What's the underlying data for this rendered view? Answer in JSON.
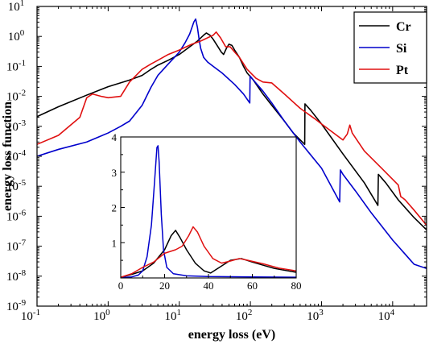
{
  "chart_data": [
    {
      "type": "line",
      "xlabel": "energy loss (eV)",
      "ylabel": "energy loss function",
      "xscale": "log",
      "yscale": "log",
      "xlim": [
        0.1,
        30000
      ],
      "ylim": [
        1e-09,
        10
      ],
      "xticks": [
        {
          "value": 0.1,
          "base": "10",
          "exp": "-1"
        },
        {
          "value": 1,
          "base": "10",
          "exp": "0"
        },
        {
          "value": 10,
          "base": "10",
          "exp": "1"
        },
        {
          "value": 100,
          "base": "10",
          "exp": "2"
        },
        {
          "value": 1000,
          "base": "10",
          "exp": "3"
        },
        {
          "value": 10000,
          "base": "10",
          "exp": "4"
        }
      ],
      "yticks": [
        {
          "value": 1e-09,
          "base": "10",
          "exp": "-9"
        },
        {
          "value": 1e-08,
          "base": "10",
          "exp": "-8"
        },
        {
          "value": 1e-07,
          "base": "10",
          "exp": "-7"
        },
        {
          "value": 1e-06,
          "base": "10",
          "exp": "-6"
        },
        {
          "value": 1e-05,
          "base": "10",
          "exp": "-5"
        },
        {
          "value": 0.0001,
          "base": "10",
          "exp": "-4"
        },
        {
          "value": 0.001,
          "base": "10",
          "exp": "-3"
        },
        {
          "value": 0.01,
          "base": "10",
          "exp": "-2"
        },
        {
          "value": 0.1,
          "base": "10",
          "exp": "-1"
        },
        {
          "value": 1,
          "base": "10",
          "exp": "0"
        },
        {
          "value": 10,
          "base": "10",
          "exp": "1"
        }
      ],
      "legend": {
        "position": "top-right"
      },
      "series": [
        {
          "name": "Cr",
          "color": "#000000",
          "points": [
            [
              0.1,
              0.0021
            ],
            [
              0.2,
              0.0045
            ],
            [
              0.5,
              0.011
            ],
            [
              1,
              0.021
            ],
            [
              2,
              0.035
            ],
            [
              3,
              0.05
            ],
            [
              4,
              0.08
            ],
            [
              5,
              0.11
            ],
            [
              7,
              0.16
            ],
            [
              10,
              0.25
            ],
            [
              14,
              0.45
            ],
            [
              18,
              0.7
            ],
            [
              22,
              1.1
            ],
            [
              24,
              1.3
            ],
            [
              27,
              1.1
            ],
            [
              30,
              0.8
            ],
            [
              35,
              0.45
            ],
            [
              39,
              0.3
            ],
            [
              42,
              0.25
            ],
            [
              46,
              0.4
            ],
            [
              50,
              0.55
            ],
            [
              55,
              0.5
            ],
            [
              60,
              0.35
            ],
            [
              70,
              0.2
            ],
            [
              80,
              0.1
            ],
            [
              90,
              0.06
            ],
            [
              110,
              0.035
            ],
            [
              150,
              0.012
            ],
            [
              200,
              0.005
            ],
            [
              300,
              0.0015
            ],
            [
              400,
              0.0006
            ],
            [
              580,
              0.00025
            ],
            [
              585,
              0.0056
            ],
            [
              700,
              0.0035
            ],
            [
              1000,
              0.0012
            ],
            [
              2000,
              0.00012
            ],
            [
              4000,
              1.3e-05
            ],
            [
              6200,
              2.3e-06
            ],
            [
              6300,
              2.5e-05
            ],
            [
              8000,
              1.3e-05
            ],
            [
              12000,
              3.5e-06
            ],
            [
              20000,
              9e-07
            ],
            [
              30000,
              3.5e-07
            ]
          ]
        },
        {
          "name": "Si",
          "color": "#0000cc",
          "points": [
            [
              0.1,
              0.0001
            ],
            [
              0.2,
              0.00017
            ],
            [
              0.5,
              0.0003
            ],
            [
              1,
              0.0006
            ],
            [
              1.5,
              0.001
            ],
            [
              2,
              0.0015
            ],
            [
              3,
              0.005
            ],
            [
              4,
              0.02
            ],
            [
              5,
              0.05
            ],
            [
              7,
              0.12
            ],
            [
              10,
              0.3
            ],
            [
              12,
              0.6
            ],
            [
              14,
              1.2
            ],
            [
              16,
              3
            ],
            [
              17,
              3.8
            ],
            [
              18,
              2
            ],
            [
              19,
              0.8
            ],
            [
              20,
              0.4
            ],
            [
              22,
              0.2
            ],
            [
              25,
              0.14
            ],
            [
              30,
              0.1
            ],
            [
              40,
              0.06
            ],
            [
              60,
              0.025
            ],
            [
              80,
              0.012
            ],
            [
              98,
              0.006
            ],
            [
              99,
              0.048
            ],
            [
              110,
              0.035
            ],
            [
              150,
              0.015
            ],
            [
              200,
              0.006
            ],
            [
              300,
              0.0015
            ],
            [
              500,
              0.0003
            ],
            [
              1000,
              4e-05
            ],
            [
              1800,
              3e-06
            ],
            [
              1840,
              3.5e-05
            ],
            [
              2000,
              2.5e-05
            ],
            [
              3000,
              7e-06
            ],
            [
              5000,
              1.3e-06
            ],
            [
              10000,
              1.6e-07
            ],
            [
              20000,
              2.5e-08
            ],
            [
              30000,
              1.8e-08
            ]
          ]
        },
        {
          "name": "Pt",
          "color": "#e01010",
          "points": [
            [
              0.1,
              0.00025
            ],
            [
              0.2,
              0.0005
            ],
            [
              0.4,
              0.002
            ],
            [
              0.5,
              0.009
            ],
            [
              0.6,
              0.012
            ],
            [
              0.8,
              0.01
            ],
            [
              1,
              0.009
            ],
            [
              1.5,
              0.01
            ],
            [
              2,
              0.03
            ],
            [
              3,
              0.08
            ],
            [
              4,
              0.12
            ],
            [
              5,
              0.16
            ],
            [
              7,
              0.25
            ],
            [
              10,
              0.35
            ],
            [
              15,
              0.55
            ],
            [
              20,
              0.7
            ],
            [
              30,
              1.1
            ],
            [
              33,
              1.4
            ],
            [
              38,
              0.9
            ],
            [
              45,
              0.45
            ],
            [
              52,
              0.45
            ],
            [
              60,
              0.3
            ],
            [
              70,
              0.2
            ],
            [
              90,
              0.08
            ],
            [
              120,
              0.04
            ],
            [
              150,
              0.03
            ],
            [
              200,
              0.028
            ],
            [
              300,
              0.012
            ],
            [
              500,
              0.004
            ],
            [
              800,
              0.0018
            ],
            [
              1000,
              0.0012
            ],
            [
              2000,
              0.00035
            ],
            [
              2300,
              0.00055
            ],
            [
              2500,
              0.0011
            ],
            [
              2700,
              0.0006
            ],
            [
              4000,
              0.00015
            ],
            [
              7000,
              4e-05
            ],
            [
              12000,
              1.1e-05
            ],
            [
              13000,
              4.5e-06
            ],
            [
              14000,
              4e-06
            ],
            [
              15000,
              3.5e-06
            ],
            [
              20000,
              1.6e-06
            ],
            [
              30000,
              5e-07
            ]
          ]
        }
      ]
    },
    {
      "type": "line",
      "xscale": "linear",
      "yscale": "linear",
      "xlim": [
        0,
        80
      ],
      "ylim": [
        0,
        4
      ],
      "xticks": [
        0,
        20,
        40,
        60,
        80
      ],
      "yticks": [
        1,
        2,
        3,
        4
      ],
      "series": [
        {
          "name": "Cr",
          "color": "#000000",
          "points": [
            [
              0,
              0.02
            ],
            [
              5,
              0.1
            ],
            [
              10,
              0.2
            ],
            [
              15,
              0.42
            ],
            [
              20,
              0.8
            ],
            [
              23,
              1.2
            ],
            [
              25,
              1.35
            ],
            [
              27,
              1.15
            ],
            [
              30,
              0.8
            ],
            [
              34,
              0.42
            ],
            [
              38,
              0.2
            ],
            [
              41,
              0.14
            ],
            [
              45,
              0.3
            ],
            [
              50,
              0.5
            ],
            [
              55,
              0.55
            ],
            [
              60,
              0.45
            ],
            [
              70,
              0.27
            ],
            [
              80,
              0.16
            ]
          ]
        },
        {
          "name": "Si",
          "color": "#0000cc",
          "points": [
            [
              0,
              0.01
            ],
            [
              5,
              0.03
            ],
            [
              8,
              0.08
            ],
            [
              10,
              0.2
            ],
            [
              12,
              0.6
            ],
            [
              14,
              1.5
            ],
            [
              15.5,
              2.8
            ],
            [
              16.5,
              3.7
            ],
            [
              17,
              3.75
            ],
            [
              17.5,
              3.3
            ],
            [
              18.5,
              1.8
            ],
            [
              19.5,
              0.8
            ],
            [
              21,
              0.3
            ],
            [
              24,
              0.12
            ],
            [
              30,
              0.06
            ],
            [
              40,
              0.04
            ],
            [
              60,
              0.03
            ],
            [
              80,
              0.02
            ]
          ]
        },
        {
          "name": "Pt",
          "color": "#e01010",
          "points": [
            [
              0,
              0.02
            ],
            [
              5,
              0.12
            ],
            [
              10,
              0.3
            ],
            [
              15,
              0.45
            ],
            [
              20,
              0.7
            ],
            [
              25,
              0.8
            ],
            [
              28,
              0.9
            ],
            [
              31,
              1.2
            ],
            [
              33,
              1.45
            ],
            [
              35,
              1.3
            ],
            [
              38,
              0.9
            ],
            [
              42,
              0.55
            ],
            [
              46,
              0.42
            ],
            [
              50,
              0.48
            ],
            [
              54,
              0.55
            ],
            [
              58,
              0.5
            ],
            [
              65,
              0.4
            ],
            [
              72,
              0.28
            ],
            [
              80,
              0.2
            ]
          ]
        }
      ]
    }
  ]
}
